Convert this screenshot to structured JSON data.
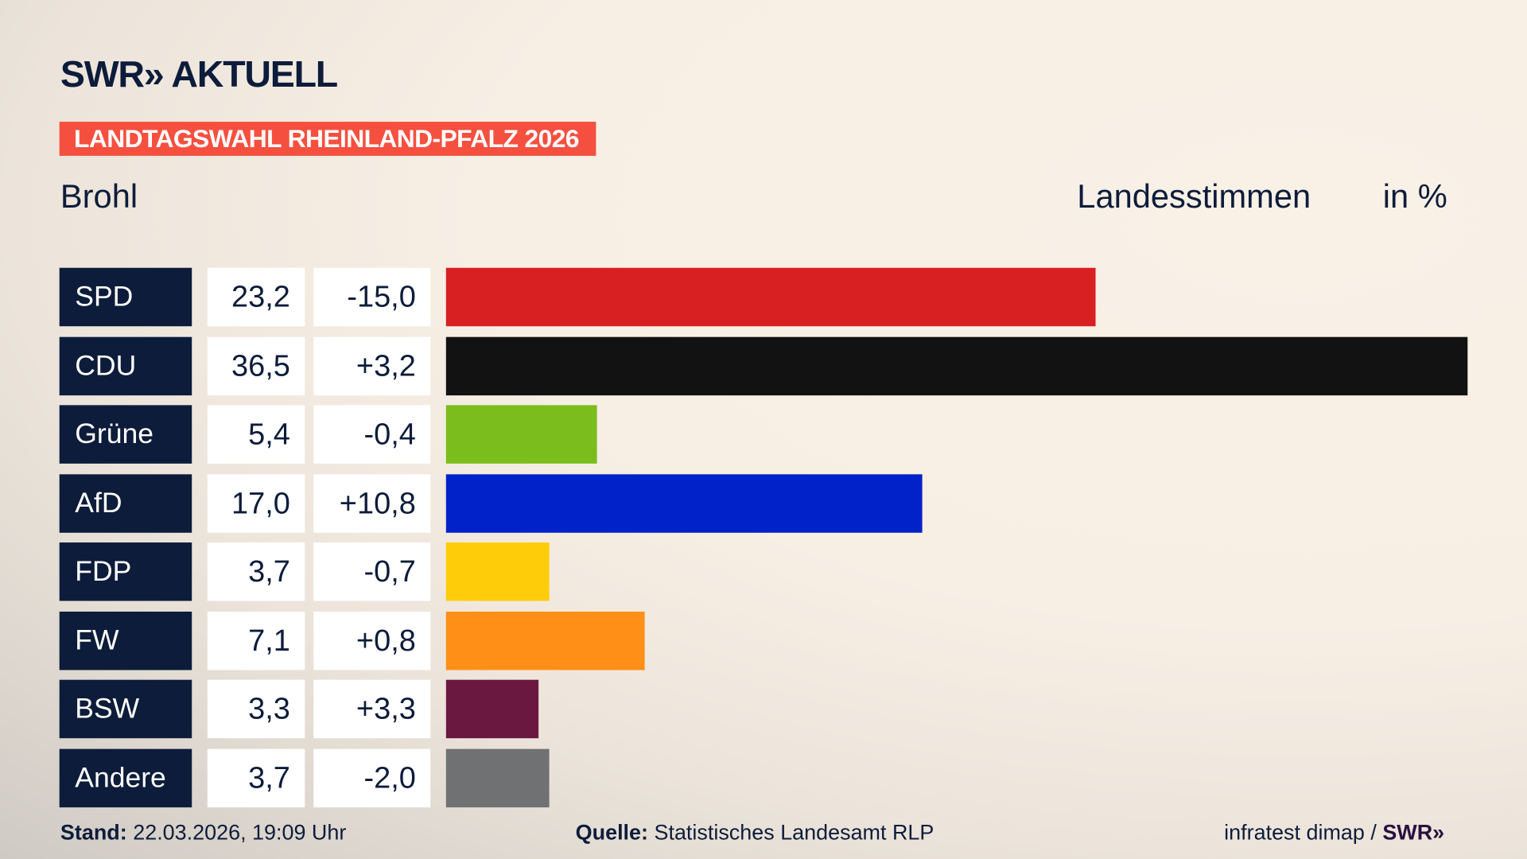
{
  "header": {
    "logo": "SWR» AKTUELL",
    "banner": "LANDTAGSWAHL RHEINLAND-PFALZ 2026",
    "place": "Brohl",
    "metric": "Landesstimmen",
    "unit": "in %"
  },
  "chart_data": {
    "type": "bar",
    "orientation": "horizontal",
    "xlim": [
      0,
      36.5
    ],
    "categories": [
      "SPD",
      "CDU",
      "Grüne",
      "AfD",
      "FDP",
      "FW",
      "BSW",
      "Andere"
    ],
    "values": [
      23.2,
      36.5,
      5.4,
      17.0,
      3.7,
      7.1,
      3.3,
      3.7
    ],
    "value_labels": [
      "23,2",
      "36,5",
      "5,4",
      "17,0",
      "3,7",
      "7,1",
      "3,3",
      "3,7"
    ],
    "change_labels": [
      "-15,0",
      "+3,2",
      "-0,4",
      "+10,8",
      "-0,7",
      "+0,8",
      "+3,3",
      "-2,0"
    ],
    "changes": [
      -15.0,
      3.2,
      -0.4,
      10.8,
      -0.7,
      0.8,
      3.3,
      -2.0
    ],
    "colors": [
      "#d81f22",
      "#121212",
      "#7bbd1c",
      "#0022c8",
      "#ffcc0a",
      "#ff8f17",
      "#6a1840",
      "#707172"
    ]
  },
  "footer": {
    "stand_label": "Stand:",
    "stand_value": "22.03.2026, 19:09 Uhr",
    "source_label": "Quelle:",
    "source_value": "Statistisches Landesamt RLP",
    "credit": "infratest dimap / ",
    "credit_logo": "SWR»"
  }
}
